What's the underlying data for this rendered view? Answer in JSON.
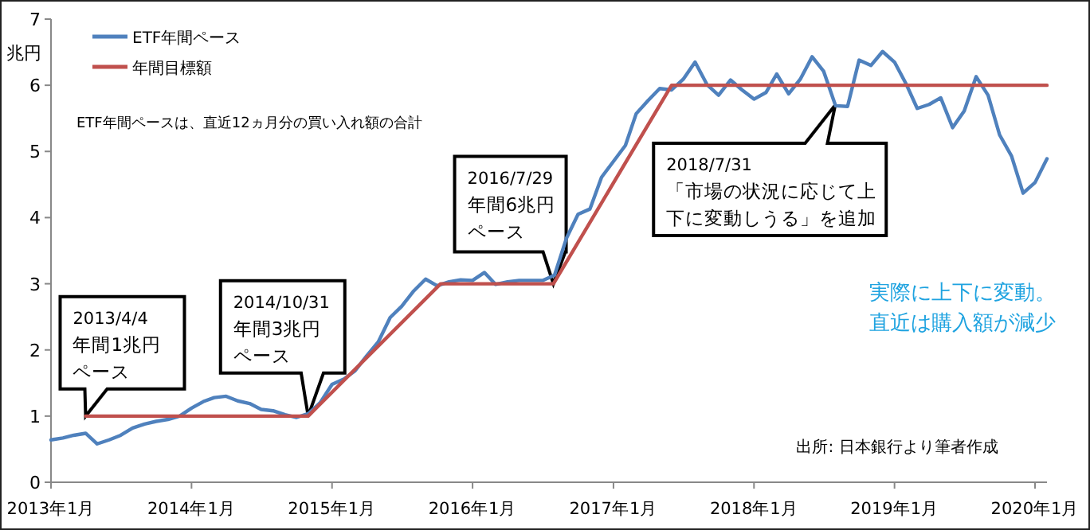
{
  "chart_data": {
    "type": "line",
    "ylabel": "兆円",
    "legend": "top left",
    "grid": false,
    "ylim": [
      0,
      7
    ],
    "yticks": [
      0,
      1,
      2,
      3,
      4,
      5,
      6,
      7
    ],
    "xlim": [
      "2013-01",
      "2020-02"
    ],
    "xticks": [
      {
        "value": "2013-01",
        "label": "2013年1月"
      },
      {
        "value": "2014-01",
        "label": "2014年1月"
      },
      {
        "value": "2015-01",
        "label": "2015年1月"
      },
      {
        "value": "2016-01",
        "label": "2016年1月"
      },
      {
        "value": "2017-01",
        "label": "2017年1月"
      },
      {
        "value": "2018-01",
        "label": "2018年1月"
      },
      {
        "value": "2019-01",
        "label": "2019年1月"
      },
      {
        "value": "2020-01",
        "label": "2020年1月"
      }
    ],
    "series": [
      {
        "name": "ETF年間ペース",
        "color": "#4f81bd",
        "x": [
          "2013-01",
          "2013-02",
          "2013-03",
          "2013-04",
          "2013-05",
          "2013-06",
          "2013-07",
          "2013-08",
          "2013-09",
          "2013-10",
          "2013-11",
          "2013-12",
          "2014-01",
          "2014-02",
          "2014-03",
          "2014-04",
          "2014-05",
          "2014-06",
          "2014-07",
          "2014-08",
          "2014-09",
          "2014-10",
          "2014-11",
          "2014-12",
          "2015-01",
          "2015-02",
          "2015-03",
          "2015-04",
          "2015-05",
          "2015-06",
          "2015-07",
          "2015-08",
          "2015-09",
          "2015-10",
          "2015-11",
          "2015-12",
          "2016-01",
          "2016-02",
          "2016-03",
          "2016-04",
          "2016-05",
          "2016-06",
          "2016-07",
          "2016-08",
          "2016-09",
          "2016-10",
          "2016-11",
          "2016-12",
          "2017-01",
          "2017-02",
          "2017-03",
          "2017-04",
          "2017-05",
          "2017-06",
          "2017-07",
          "2017-08",
          "2017-09",
          "2017-10",
          "2017-11",
          "2017-12",
          "2018-01",
          "2018-02",
          "2018-03",
          "2018-04",
          "2018-05",
          "2018-06",
          "2018-07",
          "2018-08",
          "2018-09",
          "2018-10",
          "2018-11",
          "2018-12",
          "2019-01",
          "2019-02",
          "2019-03",
          "2019-04",
          "2019-05",
          "2019-06",
          "2019-07",
          "2019-08",
          "2019-09",
          "2019-10",
          "2019-11",
          "2019-12",
          "2020-01",
          "2020-02"
        ],
        "values": [
          0.64,
          0.67,
          0.71,
          0.74,
          0.58,
          0.64,
          0.71,
          0.82,
          0.88,
          0.92,
          0.95,
          1.0,
          1.12,
          1.22,
          1.28,
          1.3,
          1.23,
          1.19,
          1.1,
          1.08,
          1.02,
          0.98,
          1.04,
          1.2,
          1.48,
          1.56,
          1.68,
          1.91,
          2.12,
          2.49,
          2.66,
          2.89,
          3.07,
          2.97,
          3.03,
          3.06,
          3.05,
          3.17,
          2.99,
          3.03,
          3.05,
          3.05,
          3.05,
          3.13,
          3.69,
          4.05,
          4.13,
          4.61,
          4.85,
          5.09,
          5.57,
          5.77,
          5.95,
          5.93,
          6.09,
          6.35,
          6.01,
          5.85,
          6.08,
          5.93,
          5.79,
          5.89,
          6.17,
          5.87,
          6.09,
          6.43,
          6.21,
          5.69,
          5.68,
          6.38,
          6.3,
          6.51,
          6.35,
          6.01,
          5.65,
          5.71,
          5.81,
          5.36,
          5.61,
          6.13,
          5.85,
          5.25,
          4.93,
          4.37,
          4.53,
          4.89
        ]
      },
      {
        "name": "年間目標額",
        "color": "#c0504d",
        "x": [
          "2013-04",
          "2014-10-31",
          "2015-10-10",
          "2016-07-29",
          "2017-06",
          "2020-02"
        ],
        "values": [
          1,
          1,
          3,
          3,
          6,
          6
        ]
      }
    ],
    "annotations": [
      {
        "text": "2013/4/4\n年間1兆円ペース",
        "x": "2013-04",
        "y": 1
      },
      {
        "text": "2014/10/31\n年間3兆円ペース",
        "x": "2014-10-31",
        "y": 1
      },
      {
        "text": "2016/7/29\n年間6兆円ペース",
        "x": "2016-07-29",
        "y": 3
      },
      {
        "text": "2018/7/31\n「市場の状況に応じて上下に変動しうる」を追加",
        "x": "2018-07-31",
        "y": 5.7
      },
      "ETF年間ペースは、直近12ヵ月分の買い入れ額の合計",
      "実際に上下に変動。直近は購入額が減少",
      "出所: 日本銀行より筆者作成"
    ]
  }
}
